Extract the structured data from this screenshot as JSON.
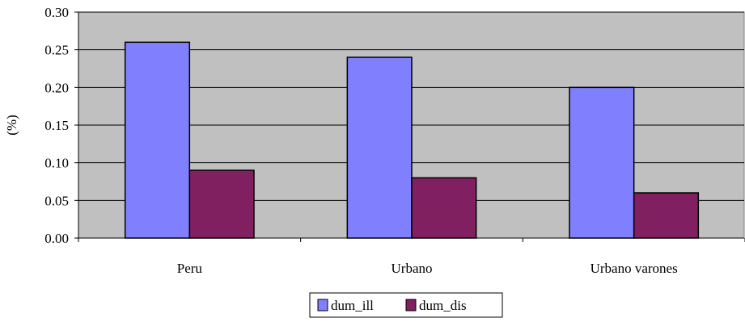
{
  "chart_data": {
    "type": "bar",
    "title": "",
    "xlabel": "",
    "ylabel": "(%)",
    "ylim": [
      0,
      0.3
    ],
    "yticks": [
      "0.00",
      "0.05",
      "0.10",
      "0.15",
      "0.20",
      "0.25",
      "0.30"
    ],
    "ytick_values": [
      0,
      0.05,
      0.1,
      0.15,
      0.2,
      0.25,
      0.3
    ],
    "categories": [
      "Peru",
      "Urbano",
      "Urbano varones"
    ],
    "series": [
      {
        "name": "dum_ill",
        "values": [
          0.26,
          0.24,
          0.2
        ],
        "color": "#8080ff"
      },
      {
        "name": "dum_dis",
        "values": [
          0.09,
          0.08,
          0.06
        ],
        "color": "#802060"
      }
    ],
    "grid": true,
    "plot_background": "#c0c0c0",
    "legend_position": "bottom-center"
  }
}
